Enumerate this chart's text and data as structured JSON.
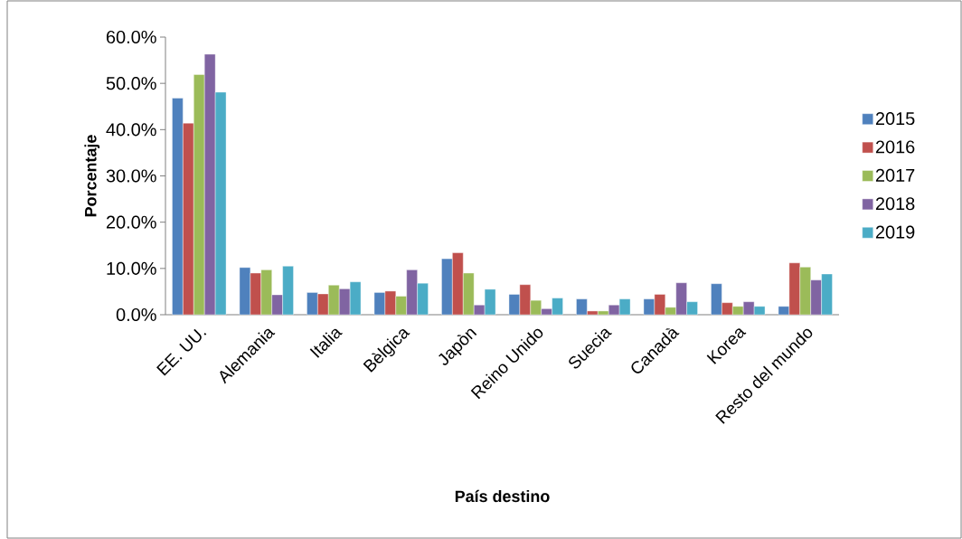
{
  "chart_data": {
    "type": "bar",
    "xlabel": "País destino",
    "ylabel": "Porcentaje",
    "categories": [
      "EE. UU.",
      "Alemania",
      "Italia",
      "Bèlgica",
      "Japòn",
      "Reino Unido",
      "Suecia",
      "Canadà",
      "Korea",
      "Resto del mundo"
    ],
    "series": [
      {
        "name": "2015",
        "color": "#4f81bd",
        "values": [
          46.8,
          10.2,
          4.8,
          4.8,
          12.1,
          4.4,
          3.4,
          3.4,
          6.7,
          1.8
        ]
      },
      {
        "name": "2016",
        "color": "#c0504d",
        "values": [
          41.4,
          9.0,
          4.5,
          5.1,
          13.4,
          6.5,
          0.8,
          4.4,
          2.6,
          11.2
        ]
      },
      {
        "name": "2017",
        "color": "#9bbb59",
        "values": [
          51.9,
          9.7,
          6.4,
          4.0,
          9.0,
          3.1,
          0.8,
          1.6,
          1.8,
          10.3
        ]
      },
      {
        "name": "2018",
        "color": "#8064a2",
        "values": [
          56.3,
          4.3,
          5.6,
          9.7,
          2.1,
          1.3,
          2.1,
          6.9,
          2.8,
          7.5
        ]
      },
      {
        "name": "2019",
        "color": "#4bacc6",
        "values": [
          48.1,
          10.5,
          7.1,
          6.8,
          5.5,
          3.6,
          3.4,
          2.8,
          1.8,
          8.8
        ]
      }
    ],
    "ylim": [
      0,
      60
    ],
    "yticks": [
      {
        "value": 0,
        "label": "0.0%"
      },
      {
        "value": 10,
        "label": "10.0%"
      },
      {
        "value": 20,
        "label": "20.0%"
      },
      {
        "value": 30,
        "label": "30.0%"
      },
      {
        "value": 40,
        "label": "40.0%"
      },
      {
        "value": 50,
        "label": "50.0%"
      },
      {
        "value": 60,
        "label": "60.0%"
      }
    ],
    "legend": "right",
    "grid": false
  }
}
